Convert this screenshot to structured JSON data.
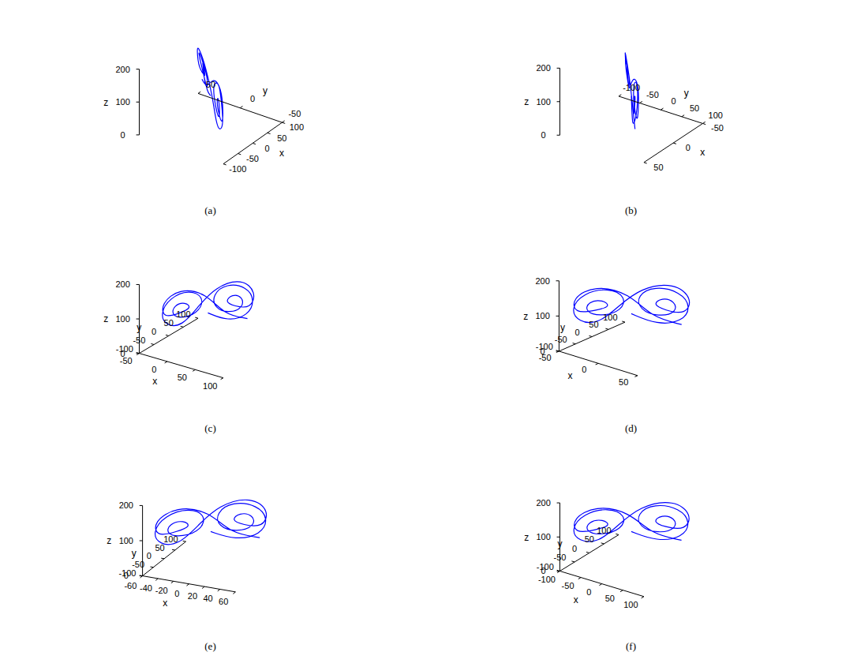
{
  "chart_data": [
    {
      "type": "line",
      "title": "(a)",
      "xlabel": "x",
      "ylabel": "y",
      "zlabel": "z",
      "color": "#0000ff",
      "xlim": [
        -100,
        100
      ],
      "ylim": [
        -50,
        50
      ],
      "zlim": [
        0,
        200
      ],
      "xticks": [
        -100,
        -50,
        0,
        50,
        100
      ],
      "yticks": [
        -50,
        0,
        50
      ],
      "zticks": [
        0,
        100,
        200
      ],
      "x": [
        0,
        40,
        80,
        90,
        70,
        30,
        6,
        10,
        40,
        70,
        66,
        44,
        30,
        50,
        80,
        90,
        60,
        10,
        -20,
        -50,
        -80,
        -90,
        -70,
        -30,
        -6,
        -12,
        -44,
        -70,
        -64,
        -40,
        -28,
        -52,
        -84,
        -88,
        -50,
        0,
        30,
        76
      ],
      "y": [
        0,
        18,
        36,
        45,
        39,
        21,
        6,
        7,
        21,
        33,
        33,
        24,
        17,
        25,
        42,
        48,
        36,
        9,
        -9,
        -24,
        -39,
        -47,
        -37,
        -21,
        -5,
        -8,
        -23,
        -35,
        -33,
        -23,
        -17,
        -27,
        -43,
        -46,
        -30,
        -3,
        15,
        37
      ],
      "z": [
        100,
        70,
        80,
        120,
        160,
        175,
        150,
        110,
        90,
        105,
        135,
        145,
        125,
        110,
        95,
        140,
        185,
        170,
        120,
        70,
        75,
        115,
        160,
        178,
        150,
        110,
        92,
        105,
        135,
        142,
        122,
        110,
        100,
        145,
        185,
        160,
        90,
        70
      ]
    },
    {
      "type": "line",
      "title": "(b)",
      "xlabel": "x",
      "ylabel": "y",
      "zlabel": "z",
      "color": "#0000ff",
      "xlim": [
        -50,
        50
      ],
      "ylim": [
        -100,
        100
      ],
      "zlim": [
        0,
        200
      ],
      "xticks": [
        -50,
        0,
        50
      ],
      "yticks": [
        -100,
        -50,
        0,
        50,
        100
      ],
      "zticks": [
        0,
        100,
        200
      ],
      "x": [
        0,
        20,
        40,
        45,
        35,
        15,
        3,
        5,
        20,
        35,
        33,
        22,
        15,
        25,
        40,
        45,
        30,
        5,
        -10,
        -25,
        -40,
        -45,
        -35,
        -15,
        -3,
        -6,
        -22,
        -35,
        -32,
        -20,
        -14,
        -26,
        -42,
        -44,
        -25,
        0,
        15,
        38
      ],
      "y": [
        0,
        30,
        60,
        75,
        65,
        35,
        10,
        12,
        35,
        55,
        55,
        40,
        28,
        42,
        70,
        80,
        60,
        15,
        -15,
        -40,
        -65,
        -78,
        -62,
        -35,
        -8,
        -14,
        -38,
        -58,
        -55,
        -38,
        -28,
        -45,
        -72,
        -76,
        -50,
        -5,
        25,
        62
      ],
      "z": [
        100,
        70,
        80,
        120,
        160,
        175,
        150,
        110,
        90,
        105,
        135,
        145,
        125,
        110,
        95,
        140,
        185,
        170,
        120,
        70,
        75,
        115,
        160,
        178,
        150,
        110,
        92,
        105,
        135,
        142,
        122,
        110,
        100,
        145,
        185,
        160,
        90,
        70
      ]
    },
    {
      "type": "line",
      "title": "(c)",
      "xlabel": "x",
      "ylabel": "y",
      "zlabel": "z",
      "color": "#0000ff",
      "xlim": [
        -50,
        100
      ],
      "ylim": [
        -100,
        100
      ],
      "zlim": [
        0,
        200
      ],
      "xticks": [
        -50,
        0,
        50,
        100
      ],
      "yticks": [
        -100,
        -50,
        0,
        50,
        100
      ],
      "zticks": [
        0,
        100,
        200
      ],
      "x": [
        20,
        40,
        60,
        65,
        55,
        35,
        23,
        25,
        40,
        55,
        53,
        42,
        35,
        45,
        60,
        65,
        50,
        25,
        10,
        -5,
        -20,
        -25,
        -15,
        5,
        17,
        14,
        -2,
        -15,
        -12,
        0,
        6,
        -6,
        -22,
        -24,
        -5,
        20,
        35,
        58
      ],
      "y": [
        0,
        30,
        60,
        75,
        65,
        35,
        10,
        12,
        35,
        55,
        55,
        40,
        28,
        42,
        70,
        80,
        60,
        15,
        -15,
        -40,
        -65,
        -78,
        -62,
        -35,
        -8,
        -14,
        -38,
        -58,
        -55,
        -38,
        -28,
        -45,
        -72,
        -76,
        -50,
        -5,
        25,
        62
      ],
      "z": [
        100,
        70,
        80,
        120,
        160,
        175,
        150,
        110,
        90,
        105,
        135,
        145,
        125,
        110,
        95,
        140,
        185,
        170,
        120,
        70,
        75,
        115,
        160,
        178,
        150,
        110,
        92,
        105,
        135,
        142,
        122,
        110,
        100,
        145,
        185,
        160,
        90,
        70
      ]
    },
    {
      "type": "line",
      "title": "(d)",
      "xlabel": "x",
      "ylabel": "y",
      "zlabel": "z",
      "color": "#0000ff",
      "xlim": [
        -50,
        50
      ],
      "ylim": [
        -100,
        100
      ],
      "zlim": [
        0,
        200
      ],
      "xticks": [
        -50,
        0,
        50
      ],
      "yticks": [
        -100,
        -50,
        0,
        50,
        100
      ],
      "zticks": [
        0,
        100,
        200
      ],
      "x": [
        0,
        20,
        40,
        45,
        35,
        15,
        3,
        5,
        20,
        35,
        33,
        22,
        15,
        25,
        40,
        45,
        30,
        5,
        -10,
        -25,
        -40,
        -45,
        -35,
        -15,
        -3,
        -6,
        -22,
        -35,
        -32,
        -20,
        -14,
        -26,
        -42,
        -44,
        -25,
        0,
        15,
        38
      ],
      "y": [
        0,
        30,
        60,
        75,
        65,
        35,
        10,
        12,
        35,
        55,
        55,
        40,
        28,
        42,
        70,
        80,
        60,
        15,
        -15,
        -40,
        -65,
        -78,
        -62,
        -35,
        -8,
        -14,
        -38,
        -58,
        -55,
        -38,
        -28,
        -45,
        -72,
        -76,
        -50,
        -5,
        25,
        62
      ],
      "z": [
        100,
        70,
        80,
        120,
        160,
        175,
        150,
        110,
        90,
        105,
        135,
        145,
        125,
        110,
        95,
        140,
        185,
        170,
        120,
        70,
        75,
        115,
        160,
        178,
        150,
        110,
        92,
        105,
        135,
        142,
        122,
        110,
        100,
        145,
        185,
        160,
        90,
        70
      ]
    },
    {
      "type": "line",
      "title": "(e)",
      "xlabel": "x",
      "ylabel": "y",
      "zlabel": "z",
      "color": "#0000ff",
      "xlim": [
        -60,
        60
      ],
      "ylim": [
        -100,
        100
      ],
      "zlim": [
        0,
        200
      ],
      "xticks": [
        -60,
        -40,
        -20,
        0,
        20,
        40,
        60
      ],
      "yticks": [
        -100,
        -50,
        0,
        50,
        100
      ],
      "zticks": [
        0,
        100,
        200
      ],
      "x": [
        0,
        24,
        48,
        54,
        42,
        18,
        4,
        6,
        24,
        42,
        40,
        26,
        18,
        30,
        48,
        54,
        36,
        6,
        -12,
        -30,
        -48,
        -54,
        -42,
        -18,
        -4,
        -7,
        -26,
        -42,
        -38,
        -24,
        -17,
        -31,
        -50,
        -53,
        -30,
        0,
        18,
        46
      ],
      "y": [
        0,
        30,
        60,
        75,
        65,
        35,
        10,
        12,
        35,
        55,
        55,
        40,
        28,
        42,
        70,
        80,
        60,
        15,
        -15,
        -40,
        -65,
        -78,
        -62,
        -35,
        -8,
        -14,
        -38,
        -58,
        -55,
        -38,
        -28,
        -45,
        -72,
        -76,
        -50,
        -5,
        25,
        62
      ],
      "z": [
        100,
        70,
        80,
        120,
        160,
        175,
        150,
        110,
        90,
        105,
        135,
        145,
        125,
        110,
        95,
        140,
        185,
        170,
        120,
        70,
        75,
        115,
        160,
        178,
        150,
        110,
        92,
        105,
        135,
        142,
        122,
        110,
        100,
        145,
        185,
        160,
        90,
        70
      ]
    },
    {
      "type": "line",
      "title": "(f)",
      "xlabel": "x",
      "ylabel": "y",
      "zlabel": "z",
      "color": "#0000ff",
      "xlim": [
        -100,
        100
      ],
      "ylim": [
        -100,
        100
      ],
      "zlim": [
        0,
        200
      ],
      "xticks": [
        -100,
        -50,
        0,
        50,
        100
      ],
      "yticks": [
        -100,
        -50,
        0,
        50,
        100
      ],
      "zticks": [
        0,
        100,
        200
      ],
      "x": [
        0,
        40,
        80,
        90,
        70,
        30,
        6,
        10,
        40,
        70,
        66,
        44,
        30,
        50,
        80,
        90,
        60,
        10,
        -20,
        -50,
        -80,
        -90,
        -70,
        -30,
        -6,
        -12,
        -44,
        -70,
        -64,
        -40,
        -28,
        -52,
        -84,
        -88,
        -50,
        0,
        30,
        76
      ],
      "y": [
        0,
        30,
        60,
        75,
        65,
        35,
        10,
        12,
        35,
        55,
        55,
        40,
        28,
        42,
        70,
        80,
        60,
        15,
        -15,
        -40,
        -65,
        -78,
        -62,
        -35,
        -8,
        -14,
        -38,
        -58,
        -55,
        -38,
        -28,
        -45,
        -72,
        -76,
        -50,
        -5,
        25,
        62
      ],
      "z": [
        100,
        70,
        80,
        120,
        160,
        175,
        150,
        110,
        90,
        105,
        135,
        145,
        125,
        110,
        95,
        140,
        185,
        170,
        120,
        70,
        75,
        115,
        160,
        178,
        150,
        110,
        92,
        105,
        135,
        142,
        122,
        110,
        100,
        145,
        185,
        160,
        90,
        70
      ]
    }
  ]
}
